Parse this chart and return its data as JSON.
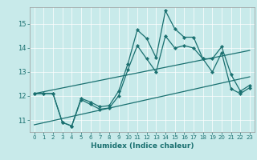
{
  "title": "",
  "xlabel": "Humidex (Indice chaleur)",
  "bg_color": "#c8eaea",
  "grid_color": "#ffffff",
  "line_color": "#1a7070",
  "xlim": [
    -0.5,
    23.5
  ],
  "ylim": [
    10.5,
    15.7
  ],
  "xticks": [
    0,
    1,
    2,
    3,
    4,
    5,
    6,
    7,
    8,
    9,
    10,
    11,
    12,
    13,
    14,
    15,
    16,
    17,
    18,
    19,
    20,
    21,
    22,
    23
  ],
  "yticks": [
    11,
    12,
    13,
    14,
    15
  ],
  "line1_x": [
    0,
    1,
    2,
    3,
    4,
    5,
    6,
    7,
    8,
    9,
    10,
    11,
    12,
    13,
    14,
    15,
    16,
    17,
    18,
    19,
    20,
    21,
    22,
    23
  ],
  "line1_y": [
    12.1,
    12.1,
    12.1,
    10.9,
    10.75,
    11.9,
    11.75,
    11.55,
    11.6,
    12.2,
    13.35,
    14.75,
    14.4,
    13.6,
    15.55,
    14.8,
    14.45,
    14.45,
    13.55,
    13.55,
    14.05,
    12.9,
    12.2,
    12.45
  ],
  "line2_x": [
    0,
    1,
    2,
    3,
    4,
    5,
    6,
    7,
    8,
    9,
    10,
    11,
    12,
    13,
    14,
    15,
    16,
    17,
    18,
    19,
    20,
    21,
    22,
    23
  ],
  "line2_y": [
    12.1,
    12.1,
    12.1,
    10.9,
    10.75,
    11.85,
    11.65,
    11.45,
    11.5,
    12.0,
    13.1,
    14.1,
    13.55,
    13.0,
    14.5,
    14.0,
    14.1,
    14.0,
    13.55,
    13.0,
    13.8,
    12.3,
    12.1,
    12.35
  ],
  "trend1_x": [
    0,
    23
  ],
  "trend1_y": [
    12.1,
    13.9
  ],
  "trend2_x": [
    0,
    23
  ],
  "trend2_y": [
    10.8,
    12.8
  ]
}
